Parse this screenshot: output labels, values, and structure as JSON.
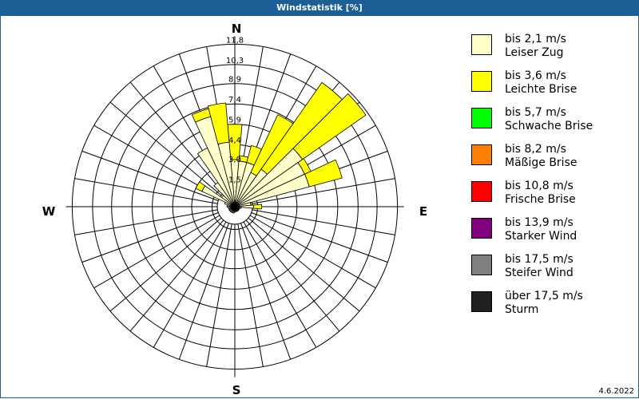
{
  "title": "Windstatistik [%]",
  "date": "4.6.2022",
  "chart_data": {
    "type": "wind-rose",
    "title": "Windstatistik [%]",
    "directions_deg": [
      0,
      10,
      20,
      30,
      40,
      50,
      60,
      70,
      80,
      90,
      100,
      110,
      120,
      130,
      140,
      150,
      160,
      170,
      180,
      190,
      200,
      210,
      220,
      230,
      240,
      250,
      260,
      270,
      280,
      290,
      300,
      310,
      320,
      330,
      340,
      350
    ],
    "compass_labels": {
      "N": "N",
      "E": "E",
      "S": "S",
      "W": "W"
    },
    "ring_values": [
      "1,5",
      "3,0",
      "4,4",
      "5,9",
      "7,4",
      "8,9",
      "10,3",
      "11,8"
    ],
    "rmax": 11.8,
    "series": [
      {
        "name": "bis 2,1 m/s",
        "values": [
          3.3,
          3.2,
          3.2,
          2.6,
          3.2,
          5.9,
          5.5,
          5.5,
          1.0,
          1.2,
          0.3,
          0.2,
          0.2,
          0.2,
          0.2,
          0.2,
          0.2,
          0.2,
          0.2,
          0.3,
          0.3,
          0.3,
          0.3,
          0.3,
          0.3,
          0.3,
          0.3,
          0.4,
          0.4,
          0.6,
          2.5,
          1.0,
          2.0,
          4.6,
          6.7,
          4.6
        ]
      },
      {
        "name": "bis 3,6 m/s",
        "values": [
          2.6,
          0.4,
          1.3,
          4.7,
          7.8,
          5.7,
          0.5,
          2.5,
          0.1,
          0.6,
          0.0,
          0.0,
          0.0,
          0.0,
          0.0,
          0.0,
          0.0,
          0.0,
          0.0,
          0.0,
          0.0,
          0.0,
          0.0,
          0.0,
          0.0,
          0.0,
          0.0,
          0.0,
          0.0,
          0.0,
          0.5,
          0.0,
          0.0,
          0.0,
          0.6,
          2.9
        ]
      },
      {
        "name": "bis 5,7 m/s",
        "values": []
      },
      {
        "name": "bis 8,2 m/s",
        "values": []
      },
      {
        "name": "bis 10,8 m/s",
        "values": []
      },
      {
        "name": "bis 13,9 m/s",
        "values": []
      },
      {
        "name": "bis 17,5 m/s",
        "values": []
      },
      {
        "name": "über 17,5 m/s",
        "values": []
      }
    ]
  },
  "legend": [
    {
      "range": "bis 2,1 m/s",
      "name": "Leiser Zug",
      "color": "#ffffcc"
    },
    {
      "range": "bis 3,6 m/s",
      "name": "Leichte Brise",
      "color": "#ffff00"
    },
    {
      "range": "bis 5,7 m/s",
      "name": "Schwache Brise",
      "color": "#00ff00"
    },
    {
      "range": "bis 8,2 m/s",
      "name": "Mäßige Brise",
      "color": "#ff8000"
    },
    {
      "range": "bis 10,8 m/s",
      "name": "Frische Brise",
      "color": "#ff0000"
    },
    {
      "range": "bis 13,9 m/s",
      "name": "Starker Wind",
      "color": "#800080"
    },
    {
      "range": "bis 17,5 m/s",
      "name": "Steifer Wind",
      "color": "#808080"
    },
    {
      "range": "über 17,5 m/s",
      "name": "Sturm",
      "color": "#202020"
    }
  ]
}
